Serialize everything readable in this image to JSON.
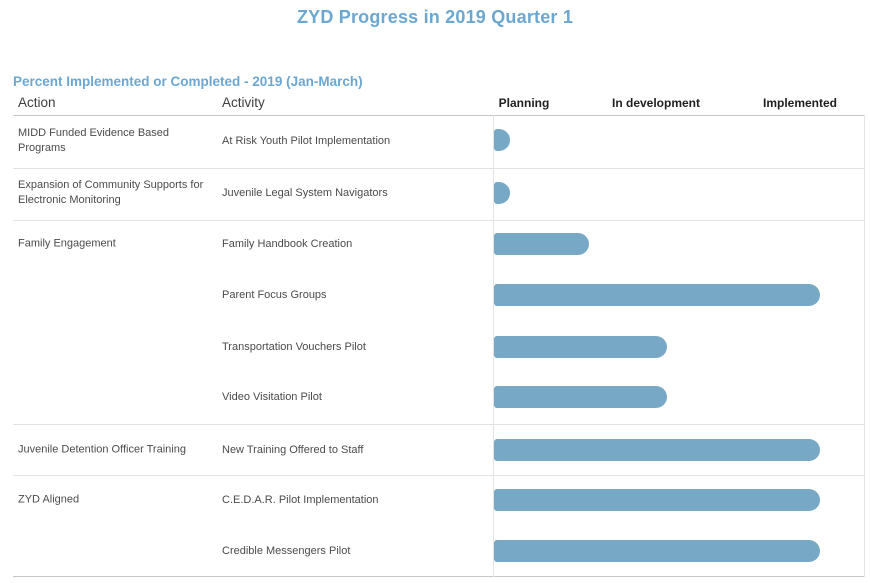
{
  "title": "ZYD Progress in 2019 Quarter 1",
  "subtitle": "Percent Implemented or Completed - 2019 (Jan-March)",
  "columns": {
    "action": "Action",
    "activity": "Activity"
  },
  "colors": {
    "accent": "#6ca7d1",
    "bar": "#77a9c6"
  },
  "rows": [
    {
      "action": "MIDD Funded Evidence Based Programs",
      "activity": "At Risk Youth Pilot Implementation",
      "percent": 5
    },
    {
      "action": "Expansion of Community Supports for Electronic Monitoring",
      "activity": "Juvenile Legal System Navigators",
      "percent": 5
    },
    {
      "action": "Family Engagement",
      "activity": "Family Handbook Creation",
      "percent": 29
    },
    {
      "action": "",
      "activity": "Parent Focus Groups",
      "percent": 100
    },
    {
      "action": "",
      "activity": "Transportation Vouchers Pilot",
      "percent": 53
    },
    {
      "action": "",
      "activity": "Video Visitation Pilot",
      "percent": 53
    },
    {
      "action": "Juvenile Detention Officer Training",
      "activity": "New Training Offered to Staff",
      "percent": 100
    },
    {
      "action": "ZYD Aligned",
      "activity": "C.E.D.A.R. Pilot Implementation",
      "percent": 100
    },
    {
      "action": "",
      "activity": "Credible Messengers Pilot",
      "percent": 100
    }
  ],
  "chart_data": {
    "type": "bar",
    "orientation": "horizontal",
    "title": "ZYD Progress in 2019 Quarter 1",
    "subtitle": "Percent Implemented or Completed - 2019 (Jan-March)",
    "xlabel": "",
    "ylabel": "",
    "xlim": [
      0,
      100
    ],
    "grid": false,
    "bar_color": "#77a9c6",
    "x_stage_labels": [
      "Planning",
      "In development",
      "Implemented"
    ],
    "categories": [
      "At Risk Youth Pilot Implementation",
      "Juvenile Legal System Navigators",
      "Family Handbook Creation",
      "Parent Focus Groups",
      "Transportation Vouchers Pilot",
      "Video Visitation Pilot",
      "New Training Offered to Staff",
      "C.E.D.A.R. Pilot Implementation",
      "Credible Messengers Pilot"
    ],
    "category_groups": [
      {
        "action": "MIDD Funded Evidence Based Programs",
        "activities": [
          "At Risk Youth Pilot Implementation"
        ]
      },
      {
        "action": "Expansion of Community Supports for Electronic Monitoring",
        "activities": [
          "Juvenile Legal System Navigators"
        ]
      },
      {
        "action": "Family Engagement",
        "activities": [
          "Family Handbook Creation",
          "Parent Focus Groups",
          "Transportation Vouchers Pilot",
          "Video Visitation Pilot"
        ]
      },
      {
        "action": "Juvenile Detention Officer Training",
        "activities": [
          "New Training Offered to Staff"
        ]
      },
      {
        "action": "ZYD Aligned",
        "activities": [
          "C.E.D.A.R. Pilot Implementation",
          "Credible Messengers Pilot"
        ]
      }
    ],
    "series": [
      {
        "name": "Percent Implemented or Completed",
        "values": [
          5,
          5,
          29,
          100,
          53,
          53,
          100,
          100,
          100
        ]
      }
    ]
  }
}
